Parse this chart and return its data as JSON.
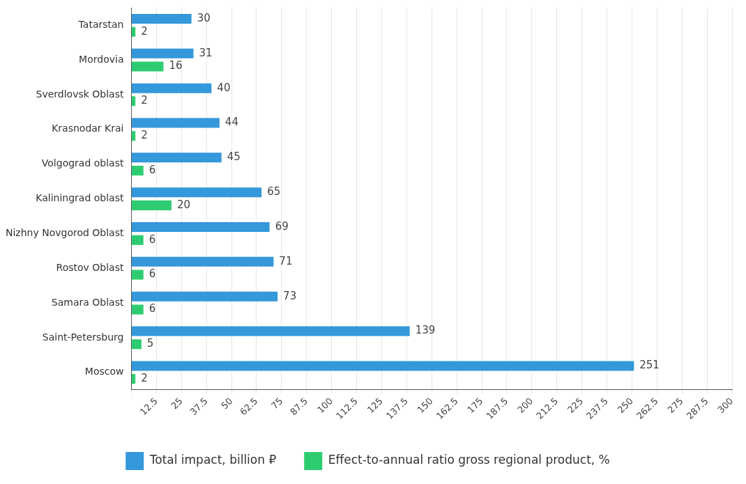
{
  "chart_data": {
    "type": "bar",
    "orientation": "horizontal",
    "categories": [
      "Tatarstan",
      "Mordovia",
      "Sverdlovsk Oblast",
      "Krasnodar Krai",
      "Volgograd oblast",
      "Kaliningrad oblast",
      "Nizhny Novgorod Oblast",
      "Rostov Oblast",
      "Samara Oblast",
      "Saint-Petersburg",
      "Moscow"
    ],
    "series": [
      {
        "name": "Total impact, billion ₽",
        "color": "#3498db",
        "values": [
          30,
          31,
          40,
          44,
          45,
          65,
          69,
          71,
          73,
          139,
          251
        ]
      },
      {
        "name": "Effect-to-annual ratio gross regional product, %",
        "color": "#2ecc71",
        "values": [
          2,
          16,
          2,
          2,
          6,
          20,
          6,
          6,
          6,
          5,
          2
        ]
      }
    ],
    "xlim": [
      0,
      300
    ],
    "xticks": [
      {
        "value": 0,
        "label": null
      },
      12.5,
      25,
      37.5,
      50,
      62.5,
      75,
      87.5,
      100,
      112.5,
      125,
      137.5,
      150,
      162.5,
      175,
      187.5,
      200,
      212.5,
      225,
      237.5,
      250,
      262.5,
      275,
      287.5,
      300
    ],
    "grid": "x",
    "legend": "bottom",
    "data_labels": true
  }
}
